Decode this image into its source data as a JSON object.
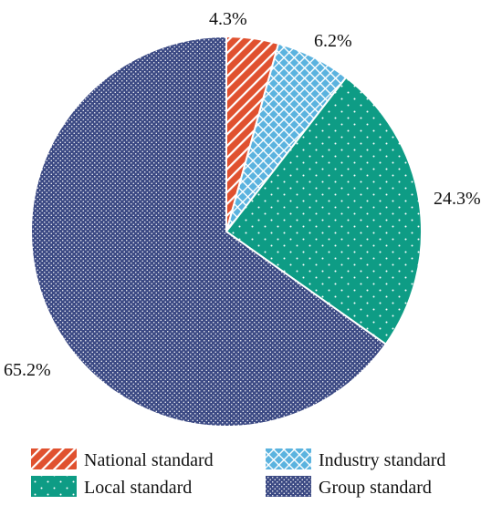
{
  "chart_data": {
    "type": "pie",
    "title": "",
    "slices": [
      {
        "label": "National standard",
        "value": 4.3,
        "display": "4.3%",
        "color": "#E0512F",
        "pattern": "diagonal-stripes"
      },
      {
        "label": "Industry standard",
        "value": 6.2,
        "display": "6.2%",
        "color": "#5BB3DF",
        "pattern": "crosshatch"
      },
      {
        "label": "Local standard",
        "value": 24.3,
        "display": "24.3%",
        "color": "#0E9C85",
        "pattern": "dots"
      },
      {
        "label": "Group standard",
        "value": 65.2,
        "display": "65.2%",
        "color": "#3C4A84",
        "pattern": "dense-dots"
      }
    ],
    "legend": {
      "placement": "bottom",
      "entries": [
        "National standard",
        "Industry standard",
        "Local standard",
        "Group standard"
      ]
    }
  }
}
